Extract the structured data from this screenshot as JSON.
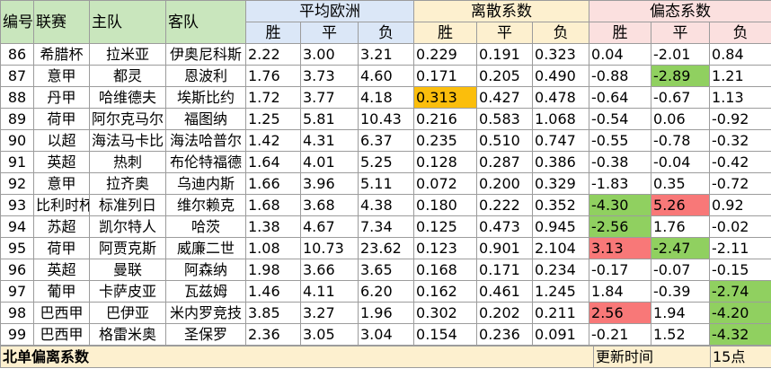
{
  "header": {
    "col_no": "编号",
    "col_league": "联赛",
    "col_home": "主队",
    "col_away": "客队",
    "group_avg": "平均欧洲",
    "group_disp": "离散系数",
    "group_skew": "偏态系数",
    "sub": [
      "胜",
      "平",
      "负"
    ]
  },
  "rows": [
    {
      "no": "86",
      "league": "希腊杯",
      "home": "拉米亚",
      "away": "伊奥尼科斯",
      "avg": [
        "2.22",
        "3.00",
        "3.21"
      ],
      "disp": [
        "0.229",
        "0.191",
        "0.323"
      ],
      "skew": [
        "0.04",
        "-2.01",
        "0.84"
      ]
    },
    {
      "no": "87",
      "league": "意甲",
      "home": "都灵",
      "away": "恩波利",
      "avg": [
        "1.76",
        "3.73",
        "4.60"
      ],
      "disp": [
        "0.171",
        "0.205",
        "0.490"
      ],
      "skew": [
        "-0.88",
        "-2.89",
        "1.21"
      ]
    },
    {
      "no": "88",
      "league": "丹甲",
      "home": "哈维德夫",
      "away": "埃斯比约",
      "avg": [
        "1.72",
        "3.77",
        "4.18"
      ],
      "disp": [
        "0.313",
        "0.427",
        "0.478"
      ],
      "skew": [
        "-0.64",
        "-0.67",
        "1.13"
      ]
    },
    {
      "no": "89",
      "league": "荷甲",
      "home": "阿尔克马尔",
      "away": "福图纳",
      "avg": [
        "1.25",
        "5.81",
        "10.43"
      ],
      "disp": [
        "0.216",
        "0.583",
        "1.068"
      ],
      "skew": [
        "-0.54",
        "0.06",
        "-0.92"
      ]
    },
    {
      "no": "90",
      "league": "以超",
      "home": "海法马卡比",
      "away": "海法哈普尔",
      "avg": [
        "1.42",
        "4.31",
        "6.37"
      ],
      "disp": [
        "0.235",
        "0.510",
        "0.747"
      ],
      "skew": [
        "-0.55",
        "-0.78",
        "-0.32"
      ]
    },
    {
      "no": "91",
      "league": "英超",
      "home": "热刺",
      "away": "布伦特福德",
      "avg": [
        "1.64",
        "4.01",
        "5.25"
      ],
      "disp": [
        "0.128",
        "0.287",
        "0.386"
      ],
      "skew": [
        "-0.38",
        "-0.04",
        "-0.42"
      ]
    },
    {
      "no": "92",
      "league": "意甲",
      "home": "拉齐奥",
      "away": "乌迪内斯",
      "avg": [
        "1.66",
        "3.96",
        "5.11"
      ],
      "disp": [
        "0.072",
        "0.200",
        "0.329"
      ],
      "skew": [
        "-1.83",
        "0.35",
        "-0.72"
      ]
    },
    {
      "no": "93",
      "league": "比利时杯",
      "home": "标准列日",
      "away": "维尔赖克",
      "avg": [
        "1.68",
        "3.68",
        "4.38"
      ],
      "disp": [
        "0.180",
        "0.222",
        "0.352"
      ],
      "skew": [
        "-4.30",
        "5.26",
        "0.92"
      ]
    },
    {
      "no": "94",
      "league": "苏超",
      "home": "凯尔特人",
      "away": "哈茨",
      "avg": [
        "1.38",
        "4.67",
        "7.34"
      ],
      "disp": [
        "0.125",
        "0.473",
        "0.945"
      ],
      "skew": [
        "-2.56",
        "1.76",
        "-0.02"
      ]
    },
    {
      "no": "95",
      "league": "荷甲",
      "home": "阿贾克斯",
      "away": "威廉二世",
      "avg": [
        "1.08",
        "10.73",
        "23.62"
      ],
      "disp": [
        "0.123",
        "0.901",
        "2.104"
      ],
      "skew": [
        "3.13",
        "-2.47",
        "-2.11"
      ]
    },
    {
      "no": "96",
      "league": "英超",
      "home": "曼联",
      "away": "阿森纳",
      "avg": [
        "1.98",
        "3.66",
        "3.65"
      ],
      "disp": [
        "0.168",
        "0.171",
        "0.234"
      ],
      "skew": [
        "-0.17",
        "-0.07",
        "-0.15"
      ]
    },
    {
      "no": "97",
      "league": "葡甲",
      "home": "卡萨皮亚",
      "away": "瓦兹姆",
      "avg": [
        "1.46",
        "4.11",
        "6.20"
      ],
      "disp": [
        "0.162",
        "0.461",
        "1.245"
      ],
      "skew": [
        "1.84",
        "-0.39",
        "-2.74"
      ]
    },
    {
      "no": "98",
      "league": "巴西甲",
      "home": "巴伊亚",
      "away": "米内罗竞技",
      "avg": [
        "3.85",
        "3.27",
        "1.96"
      ],
      "disp": [
        "0.302",
        "0.202",
        "0.211"
      ],
      "skew": [
        "2.56",
        "1.94",
        "-4.20"
      ]
    },
    {
      "no": "99",
      "league": "巴西甲",
      "home": "格雷米奥",
      "away": "圣保罗",
      "avg": [
        "2.36",
        "3.05",
        "3.04"
      ],
      "disp": [
        "0.154",
        "0.236",
        "0.091"
      ],
      "skew": [
        "-0.21",
        "1.52",
        "-4.32"
      ]
    }
  ],
  "highlights": {
    "orange": "#fbbe0c",
    "green": "#90d060",
    "red": "#f87878",
    "cells": [
      {
        "row": 2,
        "group": "disp",
        "col": 0,
        "color": "orange"
      },
      {
        "row": 1,
        "group": "skew",
        "col": 1,
        "color": "green"
      },
      {
        "row": 7,
        "group": "skew",
        "col": 0,
        "color": "green"
      },
      {
        "row": 7,
        "group": "skew",
        "col": 1,
        "color": "red"
      },
      {
        "row": 8,
        "group": "skew",
        "col": 0,
        "color": "green"
      },
      {
        "row": 9,
        "group": "skew",
        "col": 0,
        "color": "red"
      },
      {
        "row": 9,
        "group": "skew",
        "col": 1,
        "color": "green"
      },
      {
        "row": 11,
        "group": "skew",
        "col": 2,
        "color": "green"
      },
      {
        "row": 12,
        "group": "skew",
        "col": 0,
        "color": "red"
      },
      {
        "row": 12,
        "group": "skew",
        "col": 2,
        "color": "green"
      },
      {
        "row": 13,
        "group": "skew",
        "col": 2,
        "color": "green"
      }
    ]
  },
  "footer": {
    "title": "北单偏离系数",
    "update_label": "更新时间",
    "update_value": "15点"
  }
}
